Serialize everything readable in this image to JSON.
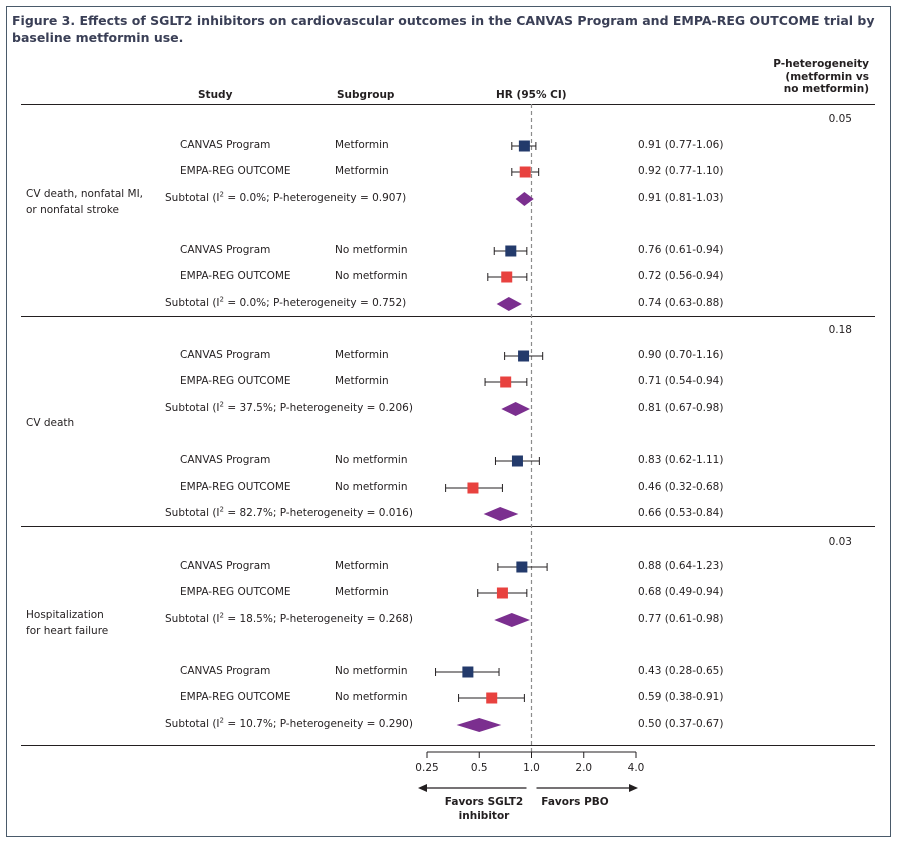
{
  "title": "Figure 3. Effects of SGLT2 inhibitors on cardiovascular outcomes in the CANVAS Program and EMPA-REG OUTCOME trial by baseline metformin use.",
  "headers": {
    "study": "Study",
    "subgroup": "Subgroup",
    "hr": "HR (95% CI)",
    "pheterogeneity": [
      "P-heterogeneity",
      "(metformin vs",
      "no metformin)"
    ]
  },
  "colors": {
    "canvas": "#233a6b",
    "empa": "#e8423f",
    "subtotal": "#7b2f8f",
    "refline": "#8c8c8c"
  },
  "chart_data": {
    "type": "forest",
    "x_scale": "log",
    "xlim": [
      0.25,
      4.0
    ],
    "ticks": [
      "0.25",
      "0.5",
      "1.0",
      "2.0",
      "4.0"
    ],
    "tick_values": [
      0.25,
      0.5,
      1.0,
      2.0,
      4.0
    ],
    "reference": 1.0,
    "favors_left": [
      "Favors SGLT2",
      "inhibitor"
    ],
    "favors_right": "Favors PBO",
    "outcomes": [
      {
        "label": [
          "CV death, nonfatal MI,",
          "or nonfatal stroke"
        ],
        "p_heterogeneity": "0.05",
        "rows": [
          {
            "study": "CANVAS Program",
            "subgroup": "Metformin",
            "kind": "canvas",
            "hr": 0.91,
            "lo": 0.77,
            "hi": 1.06,
            "ci_text": "0.91 (0.77-1.06)"
          },
          {
            "study": "EMPA-REG OUTCOME",
            "subgroup": "Metformin",
            "kind": "empa",
            "hr": 0.92,
            "lo": 0.77,
            "hi": 1.1,
            "ci_text": "0.92 (0.77-1.10)"
          },
          {
            "kind": "subtotal",
            "i2": "0.0%",
            "p": "0.907",
            "hr": 0.91,
            "lo": 0.81,
            "hi": 1.03,
            "ci_text": "0.91 (0.81-1.03)"
          },
          {
            "study": "CANVAS Program",
            "subgroup": "No metformin",
            "kind": "canvas",
            "hr": 0.76,
            "lo": 0.61,
            "hi": 0.94,
            "ci_text": "0.76 (0.61-0.94)"
          },
          {
            "study": "EMPA-REG OUTCOME",
            "subgroup": "No metformin",
            "kind": "empa",
            "hr": 0.72,
            "lo": 0.56,
            "hi": 0.94,
            "ci_text": "0.72 (0.56-0.94)"
          },
          {
            "kind": "subtotal",
            "i2": "0.0%",
            "p": "0.752",
            "hr": 0.74,
            "lo": 0.63,
            "hi": 0.88,
            "ci_text": "0.74 (0.63-0.88)"
          }
        ]
      },
      {
        "label": [
          "CV death"
        ],
        "p_heterogeneity": "0.18",
        "rows": [
          {
            "study": "CANVAS Program",
            "subgroup": "Metformin",
            "kind": "canvas",
            "hr": 0.9,
            "lo": 0.7,
            "hi": 1.16,
            "ci_text": "0.90 (0.70-1.16)"
          },
          {
            "study": "EMPA-REG OUTCOME",
            "subgroup": "Metformin",
            "kind": "empa",
            "hr": 0.71,
            "lo": 0.54,
            "hi": 0.94,
            "ci_text": "0.71 (0.54-0.94)"
          },
          {
            "kind": "subtotal",
            "i2": "37.5%",
            "p": "0.206",
            "hr": 0.81,
            "lo": 0.67,
            "hi": 0.98,
            "ci_text": "0.81 (0.67-0.98)"
          },
          {
            "study": "CANVAS Program",
            "subgroup": "No metformin",
            "kind": "canvas",
            "hr": 0.83,
            "lo": 0.62,
            "hi": 1.11,
            "ci_text": "0.83 (0.62-1.11)"
          },
          {
            "study": "EMPA-REG OUTCOME",
            "subgroup": "No metformin",
            "kind": "empa",
            "hr": 0.46,
            "lo": 0.32,
            "hi": 0.68,
            "ci_text": "0.46 (0.32-0.68)"
          },
          {
            "kind": "subtotal",
            "i2": "82.7%",
            "p": "0.016",
            "hr": 0.66,
            "lo": 0.53,
            "hi": 0.84,
            "ci_text": "0.66 (0.53-0.84)"
          }
        ]
      },
      {
        "label": [
          "Hospitalization",
          "for heart failure"
        ],
        "p_heterogeneity": "0.03",
        "rows": [
          {
            "study": "CANVAS Program",
            "subgroup": "Metformin",
            "kind": "canvas",
            "hr": 0.88,
            "lo": 0.64,
            "hi": 1.23,
            "ci_text": "0.88 (0.64-1.23)"
          },
          {
            "study": "EMPA-REG OUTCOME",
            "subgroup": "Metformin",
            "kind": "empa",
            "hr": 0.68,
            "lo": 0.49,
            "hi": 0.94,
            "ci_text": "0.68 (0.49-0.94)"
          },
          {
            "kind": "subtotal",
            "i2": "18.5%",
            "p": "0.268",
            "hr": 0.77,
            "lo": 0.61,
            "hi": 0.98,
            "ci_text": "0.77 (0.61-0.98)"
          },
          {
            "study": "CANVAS Program",
            "subgroup": "No metformin",
            "kind": "canvas",
            "hr": 0.43,
            "lo": 0.28,
            "hi": 0.65,
            "ci_text": "0.43 (0.28-0.65)"
          },
          {
            "study": "EMPA-REG OUTCOME",
            "subgroup": "No metformin",
            "kind": "empa",
            "hr": 0.59,
            "lo": 0.38,
            "hi": 0.91,
            "ci_text": "0.59 (0.38-0.91)"
          },
          {
            "kind": "subtotal",
            "i2": "10.7%",
            "p": "0.290",
            "hr": 0.5,
            "lo": 0.37,
            "hi": 0.67,
            "ci_text": "0.50 (0.37-0.67)"
          }
        ]
      }
    ]
  }
}
